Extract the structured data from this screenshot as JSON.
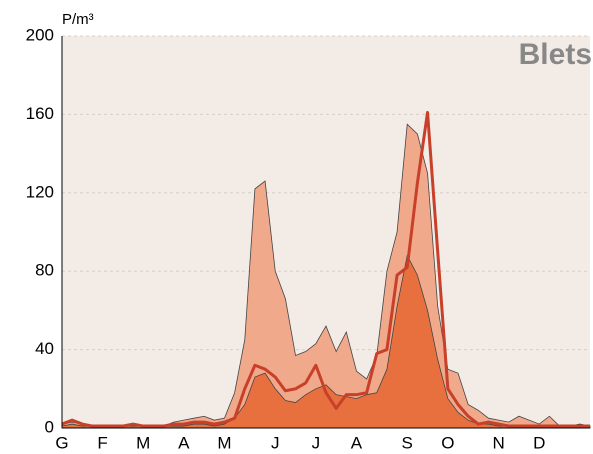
{
  "chart_data": {
    "type": "area",
    "title": "Blets",
    "y_label": "P/m³",
    "categories": [
      "G",
      null,
      null,
      null,
      "F",
      null,
      null,
      null,
      "M",
      null,
      null,
      null,
      "A",
      null,
      null,
      null,
      "M",
      null,
      null,
      null,
      null,
      "J",
      null,
      null,
      null,
      "J",
      null,
      null,
      null,
      "A",
      null,
      null,
      null,
      null,
      "S",
      null,
      null,
      null,
      "O",
      null,
      null,
      null,
      null,
      "N",
      null,
      null,
      null,
      "D",
      null,
      null,
      null,
      null,
      null
    ],
    "series": [
      {
        "style": "area",
        "color": "#f0a98b",
        "values": [
          2,
          3,
          2,
          1,
          1,
          1,
          1,
          1,
          1,
          1,
          1,
          3,
          4,
          5,
          6,
          4,
          5,
          18,
          45,
          122,
          126,
          80,
          66,
          37,
          39,
          43,
          52,
          39,
          49,
          29,
          25,
          37,
          80,
          100,
          155,
          150,
          130,
          62,
          30,
          28,
          12,
          9,
          5,
          4,
          3,
          6,
          4,
          2,
          6,
          1,
          1,
          2,
          1
        ]
      },
      {
        "style": "area",
        "color": "#e8703f",
        "values": [
          1,
          2,
          1,
          1,
          1,
          1,
          1,
          1,
          1,
          1,
          1,
          1,
          1,
          2,
          2,
          1,
          2,
          5,
          12,
          26,
          28,
          20,
          14,
          13,
          17,
          20,
          22,
          17,
          16,
          15,
          17,
          18,
          30,
          62,
          88,
          78,
          60,
          35,
          15,
          8,
          4,
          2,
          2,
          1,
          1,
          1,
          1,
          1,
          1,
          1,
          1,
          1,
          1
        ]
      },
      {
        "style": "line",
        "color": "#c8402a",
        "values": [
          2,
          4,
          2,
          1,
          1,
          1,
          1,
          2,
          1,
          1,
          1,
          2,
          2,
          3,
          3,
          2,
          3,
          5,
          20,
          32,
          30,
          26,
          19,
          20,
          23,
          32,
          18,
          10,
          17,
          17,
          18,
          38,
          40,
          78,
          82,
          125,
          161,
          90,
          20,
          12,
          6,
          2,
          3,
          2,
          1,
          1,
          1,
          1,
          1,
          1,
          1,
          1,
          1
        ]
      }
    ],
    "ylim": [
      0,
      200
    ],
    "yticks": [
      0,
      40,
      80,
      120,
      160,
      200
    ],
    "grid": true,
    "background": "#f2ebe6"
  }
}
